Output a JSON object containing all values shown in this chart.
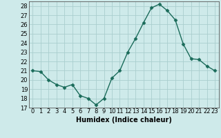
{
  "x": [
    0,
    1,
    2,
    3,
    4,
    5,
    6,
    7,
    8,
    9,
    10,
    11,
    12,
    13,
    14,
    15,
    16,
    17,
    18,
    19,
    20,
    21,
    22,
    23
  ],
  "y": [
    21.0,
    20.9,
    20.0,
    19.5,
    19.2,
    19.5,
    18.3,
    18.0,
    17.3,
    18.0,
    20.2,
    21.0,
    23.0,
    24.5,
    26.2,
    27.8,
    28.2,
    27.5,
    26.5,
    23.9,
    22.3,
    22.2,
    21.5,
    21.0
  ],
  "line_color": "#1a6b5a",
  "marker": "D",
  "marker_size": 2.5,
  "bg_color": "#ceeaea",
  "grid_color": "#aacece",
  "xlabel": "Humidex (Indice chaleur)",
  "ylabel_ticks": [
    17,
    18,
    19,
    20,
    21,
    22,
    23,
    24,
    25,
    26,
    27,
    28
  ],
  "ylim": [
    17,
    28.5
  ],
  "xlim": [
    -0.5,
    23.5
  ],
  "tick_fontsize": 6,
  "xlabel_fontsize": 7
}
